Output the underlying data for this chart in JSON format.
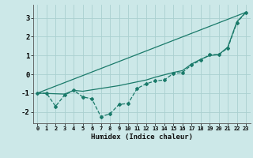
{
  "xlabel": "Humidex (Indice chaleur)",
  "bg_color": "#cce8e8",
  "grid_color": "#aad0d0",
  "line_color": "#1a7a6a",
  "xlim": [
    -0.5,
    23.5
  ],
  "ylim": [
    -2.6,
    3.7
  ],
  "yticks": [
    -2,
    -1,
    0,
    1,
    2,
    3
  ],
  "xticks": [
    0,
    1,
    2,
    3,
    4,
    5,
    6,
    7,
    8,
    9,
    10,
    11,
    12,
    13,
    14,
    15,
    16,
    17,
    18,
    19,
    20,
    21,
    22,
    23
  ],
  "series": [
    [
      0,
      -1.0
    ],
    [
      1,
      -1.0
    ],
    [
      2,
      -1.7
    ],
    [
      3,
      -1.1
    ],
    [
      4,
      -0.85
    ],
    [
      5,
      -1.2
    ],
    [
      6,
      -1.3
    ],
    [
      7,
      -2.25
    ],
    [
      8,
      -2.1
    ],
    [
      9,
      -1.6
    ],
    [
      10,
      -1.55
    ],
    [
      11,
      -0.75
    ],
    [
      12,
      -0.5
    ],
    [
      13,
      -0.35
    ],
    [
      14,
      -0.3
    ],
    [
      15,
      0.05
    ],
    [
      16,
      0.1
    ],
    [
      17,
      0.5
    ],
    [
      18,
      0.75
    ],
    [
      19,
      1.05
    ],
    [
      20,
      1.05
    ],
    [
      21,
      1.4
    ],
    [
      22,
      2.75
    ],
    [
      23,
      3.3
    ]
  ],
  "linear_line": [
    [
      0,
      -1.0
    ],
    [
      23,
      3.3
    ]
  ],
  "smooth_line": [
    [
      0,
      -1.0
    ],
    [
      3,
      -1.05
    ],
    [
      4,
      -0.85
    ],
    [
      5,
      -0.9
    ],
    [
      9,
      -0.6
    ],
    [
      10,
      -0.5
    ],
    [
      12,
      -0.3
    ],
    [
      13,
      -0.15
    ],
    [
      15,
      0.1
    ],
    [
      16,
      0.2
    ],
    [
      17,
      0.55
    ],
    [
      18,
      0.8
    ],
    [
      19,
      1.0
    ],
    [
      20,
      1.05
    ],
    [
      21,
      1.45
    ],
    [
      22,
      2.8
    ],
    [
      23,
      3.3
    ]
  ]
}
